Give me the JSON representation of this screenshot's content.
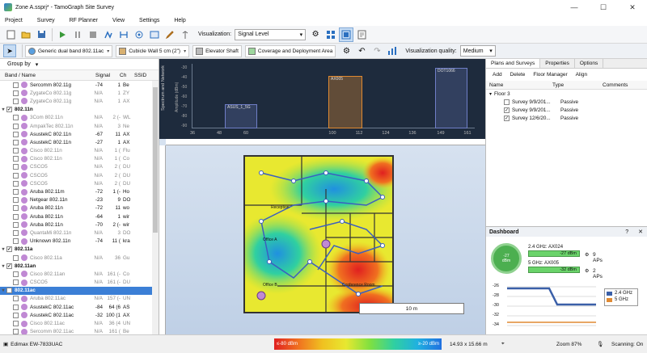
{
  "window": {
    "title": "Zone A.ssprj* - TamoGraph Site Survey",
    "minimize": "—",
    "maximize": "☐",
    "close": "✕"
  },
  "menu": [
    "Project",
    "Survey",
    "RF Planner",
    "View",
    "Settings",
    "Help"
  ],
  "toolbar1": {
    "visualization_label": "Visualization:",
    "visualization_value": "Signal Level"
  },
  "toolbar2": {
    "ap_model": "Generic dual band 802.11ac",
    "wall": "Cubicle Wall 5 cm (2\")",
    "elevator": "Elevator Shaft",
    "area": "Coverage and Deployment Area",
    "quality_label": "Visualization quality:",
    "quality_value": "Medium"
  },
  "left": {
    "group_by": "Group by",
    "headers": {
      "name": "Band / Name",
      "signal": "Signal",
      "channel": "Ch",
      "ssid": "SSID"
    },
    "rows": [
      {
        "name": "Sercomm 802.11g",
        "signal": "-74",
        "ch": "1",
        "ssid": "Be",
        "grey": false
      },
      {
        "name": "ZygateCo 802.11g",
        "signal": "N/A",
        "ch": "1",
        "ssid": "ZY",
        "grey": true
      },
      {
        "name": "ZygateCo 802.11g",
        "signal": "N/A",
        "ch": "1",
        "ssid": "AX",
        "grey": true
      },
      {
        "group": true,
        "name": "802.11n"
      },
      {
        "name": "3Com 802.11n",
        "signal": "N/A",
        "ch": "2 (-",
        "ssid": "WL",
        "grey": true
      },
      {
        "name": "AmpakTec 802.11n",
        "signal": "N/A",
        "ch": "3",
        "ssid": "Ne",
        "grey": true
      },
      {
        "name": "AsustekC 802.11n",
        "signal": "-67",
        "ch": "11",
        "ssid": "AX",
        "grey": false
      },
      {
        "name": "AsustekC 802.11n",
        "signal": "-27",
        "ch": "1",
        "ssid": "AX",
        "grey": false
      },
      {
        "name": "Cisco 802.11n",
        "signal": "N/A",
        "ch": "1 (",
        "ssid": "Flu",
        "grey": true
      },
      {
        "name": "Cisco 802.11n",
        "signal": "N/A",
        "ch": "1 (",
        "ssid": "Co",
        "grey": true
      },
      {
        "name": "CSCO5",
        "signal": "N/A",
        "ch": "2 (",
        "ssid": "DU",
        "grey": true
      },
      {
        "name": "CSCO5",
        "signal": "N/A",
        "ch": "2 (",
        "ssid": "DU",
        "grey": true
      },
      {
        "name": "CSCO5",
        "signal": "N/A",
        "ch": "2 (",
        "ssid": "DU",
        "grey": true
      },
      {
        "name": "Aruba 802.11m",
        "signal": "-72",
        "ch": "1 (-",
        "ssid": "Ho",
        "grey": false
      },
      {
        "name": "Netgear 802.11n",
        "signal": "-23",
        "ch": "9",
        "ssid": "DO",
        "grey": false
      },
      {
        "name": "Aruba 802.11n",
        "signal": "-72",
        "ch": "11",
        "ssid": "wo",
        "grey": false
      },
      {
        "name": "Aruba 802.11n",
        "signal": "-64",
        "ch": "1",
        "ssid": "wir",
        "grey": false
      },
      {
        "name": "Aruba 802.11n",
        "signal": "-70",
        "ch": "2 (-",
        "ssid": "wir",
        "grey": false
      },
      {
        "name": "QuantaMi 802.11n",
        "signal": "N/A",
        "ch": "3",
        "ssid": "DO",
        "grey": true
      },
      {
        "name": "Unknown 802.11n",
        "signal": "-74",
        "ch": "11 (",
        "ssid": "kra",
        "grey": false
      },
      {
        "group": true,
        "name": "802.11a"
      },
      {
        "name": "Cisco 802.11a",
        "signal": "N/A",
        "ch": "36",
        "ssid": "Gu",
        "grey": true
      },
      {
        "group": true,
        "name": "802.11an"
      },
      {
        "name": "Cisco 802.11an",
        "signal": "N/A",
        "ch": "161 (-",
        "ssid": "Co",
        "grey": true
      },
      {
        "name": "CSCO5",
        "signal": "N/A",
        "ch": "161 (-",
        "ssid": "DU",
        "grey": true
      },
      {
        "group": true,
        "name": "802.11ac",
        "selected": true
      },
      {
        "name": "Aruba 802.11ac",
        "signal": "N/A",
        "ch": "157 (-",
        "ssid": "UN",
        "grey": true
      },
      {
        "name": "AsustekC 802.11ac",
        "signal": "-84",
        "ch": "64 (6",
        "ssid": "AS",
        "grey": false
      },
      {
        "name": "AsustekC 802.11ac",
        "signal": "-32",
        "ch": "100 (1",
        "ssid": "AX",
        "grey": false
      },
      {
        "name": "Cisco 802.11ac",
        "signal": "N/A",
        "ch": "36 (4",
        "ssid": "UN",
        "grey": true
      },
      {
        "name": "Sercomm 802.11ac",
        "signal": "N/A",
        "ch": "161 (",
        "ssid": "Be",
        "grey": true
      }
    ]
  },
  "spectrum": {
    "ylabel": "Amplitude (dBm)",
    "xticks": [
      "36",
      "48",
      "60",
      "100",
      "112",
      "124",
      "136",
      "149",
      "161"
    ],
    "yticks": [
      "-30",
      "-40",
      "-50",
      "-60",
      "-70",
      "-80",
      "-90"
    ],
    "blocks": [
      {
        "label": "ASUS_1_5G",
        "color": "#6f7ec7"
      },
      {
        "label": "AX005",
        "color": "#e08a32"
      },
      {
        "label": "DOT1066",
        "color": "#6f7ec7"
      }
    ],
    "side_label": "Spectrum and Network"
  },
  "plan": {
    "rooms": [
      "Reception",
      "Office A",
      "Office B",
      "Conference Room"
    ],
    "scale": "10 m"
  },
  "right": {
    "tabs": [
      "Plans and Surveys",
      "Properties",
      "Options"
    ],
    "actions": [
      "Add",
      "Delete",
      "Floor Manager",
      "Align"
    ],
    "headers": {
      "name": "Name",
      "type": "Type",
      "comments": "Comments"
    },
    "floor": "Floor 3",
    "surveys": [
      {
        "name": "Survey 9/9/201...",
        "type": "Passive",
        "checked": false
      },
      {
        "name": "Survey 9/9/201...",
        "type": "Passive",
        "checked": true
      },
      {
        "name": "Survey 12/6/20...",
        "type": "Passive",
        "checked": true
      }
    ]
  },
  "dashboard": {
    "title": "Dashboard",
    "gauge_value": "-27",
    "gauge_unit": "dBm",
    "bands": [
      {
        "label": "2.4 GHz: AX024",
        "value": "-27 dBm",
        "aps": "9 APs"
      },
      {
        "label": "5 GHz: AX005",
        "value": "-32 dBm",
        "aps": "2 APs"
      }
    ],
    "yticks": [
      "-26",
      "-28",
      "-30",
      "-32",
      "-34"
    ],
    "legend": [
      {
        "name": "2.4 GHz",
        "color": "#3a5fa8"
      },
      {
        "name": "5 GHz",
        "color": "#e08a32"
      }
    ]
  },
  "status": {
    "adapter": "Edimax EW-7833UAC",
    "color_min": "≤-80 dBm",
    "color_max": "≥-20 dBm",
    "dims": "14.93 x 15.66 m",
    "zoom": "Zoom 87%",
    "scanning": "Scanning: On"
  }
}
